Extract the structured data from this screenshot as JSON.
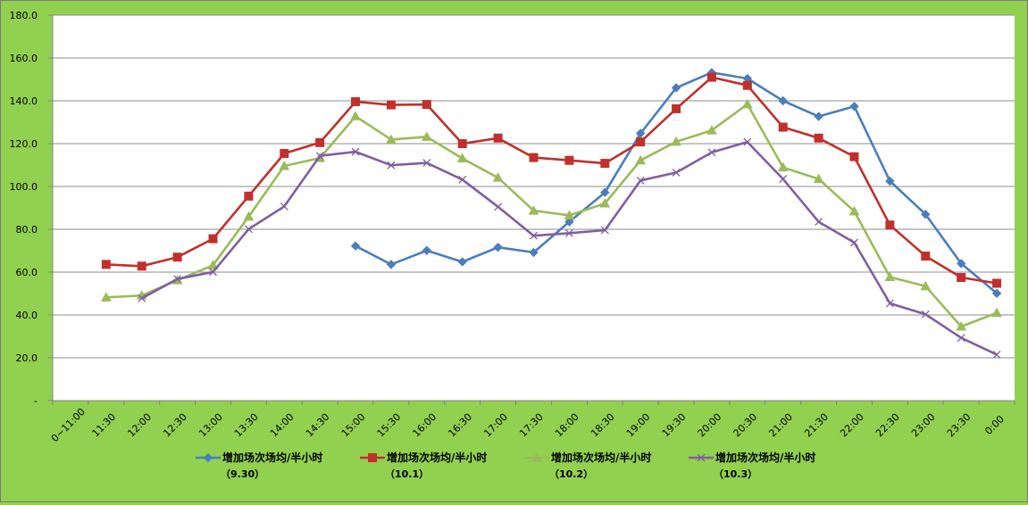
{
  "chart_data": {
    "type": "line",
    "title": "",
    "xlabel": "",
    "ylabel": "",
    "categories": [
      "0~11:00",
      "11:30",
      "12:00",
      "12:30",
      "13:00",
      "13:30",
      "14:00",
      "14:30",
      "15:00",
      "15:30",
      "16:00",
      "16:30",
      "17:00",
      "17:30",
      "18:00",
      "18:30",
      "19:00",
      "19:30",
      "20:00",
      "20:30",
      "21:00",
      "21:30",
      "22:00",
      "22:30",
      "23:00",
      "23:30",
      "0:00"
    ],
    "ylim": [
      0,
      180
    ],
    "yticks": [
      "-",
      "20.0",
      "40.0",
      "60.0",
      "80.0",
      "100.0",
      "120.0",
      "140.0",
      "160.0",
      "180.0"
    ],
    "grid": true,
    "legend_position": "bottom",
    "plot_background": "#ffffff",
    "series": [
      {
        "name_line1": "增加场次场均/半小时",
        "name_line2": "（9.30）",
        "color": "#4a7ebb",
        "marker": "diamond",
        "values": [
          null,
          null,
          null,
          null,
          null,
          null,
          null,
          null,
          72.2,
          63.6,
          70.1,
          64.8,
          71.6,
          69.2,
          83.5,
          97.2,
          124.8,
          146.1,
          153.2,
          150.4,
          140.0,
          132.7,
          137.4,
          102.5,
          87.0,
          64.0,
          50.1
        ]
      },
      {
        "name_line1": "增加场次场均/半小时",
        "name_line2": "（10.1）",
        "color": "#c0302c",
        "marker": "square",
        "values": [
          null,
          63.6,
          62.8,
          67.0,
          75.6,
          95.5,
          115.4,
          120.5,
          139.6,
          138.1,
          138.3,
          120.0,
          122.6,
          113.5,
          112.2,
          110.8,
          120.8,
          136.3,
          151.0,
          147.2,
          127.7,
          122.6,
          113.9,
          82.0,
          67.5,
          57.5,
          54.8
        ]
      },
      {
        "name_line1": "增加场次场均/半小时",
        "name_line2": "（10.2）",
        "color": "#9bbb59",
        "marker": "triangle",
        "values": [
          null,
          48.2,
          49.1,
          56.2,
          63.2,
          85.9,
          109.6,
          113.3,
          132.8,
          121.9,
          123.2,
          113.1,
          104.1,
          88.7,
          86.5,
          92.1,
          112.2,
          120.9,
          126.2,
          138.4,
          108.9,
          103.5,
          88.4,
          57.7,
          53.4,
          34.6,
          41.0
        ]
      },
      {
        "name_line1": "增加场次场均/半小时",
        "name_line2": "（10.3）",
        "color": "#7f5fa0",
        "marker": "x",
        "values": [
          null,
          null,
          47.8,
          56.8,
          60.1,
          80.1,
          90.7,
          114.3,
          116.2,
          109.9,
          111.0,
          103.2,
          90.5,
          77.0,
          78.2,
          79.6,
          102.8,
          106.5,
          115.9,
          120.8,
          103.5,
          83.5,
          73.8,
          45.4,
          40.3,
          29.3,
          21.5
        ]
      }
    ]
  }
}
